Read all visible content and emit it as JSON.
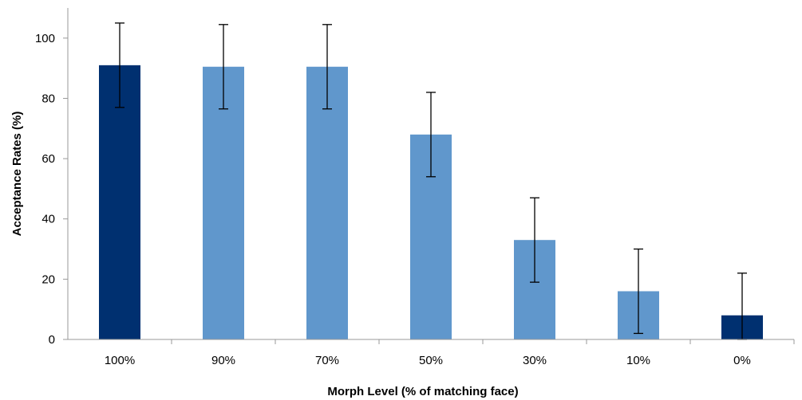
{
  "chart_data": {
    "type": "bar",
    "title": "",
    "xlabel": "Morph Level (% of matching face)",
    "ylabel": "Acceptance Rates (%)",
    "ylim": [
      0,
      110
    ],
    "yticks": [
      0,
      20,
      40,
      60,
      80,
      100
    ],
    "grid": false,
    "categories": [
      "100%",
      "90%",
      "70%",
      "50%",
      "30%",
      "10%",
      "0%"
    ],
    "values": [
      91,
      90.5,
      90.5,
      68,
      33,
      16,
      8
    ],
    "error": [
      14,
      14,
      14,
      14,
      14,
      14,
      14
    ],
    "colors": [
      "#003070",
      "#6097cc",
      "#6097cc",
      "#6097cc",
      "#6097cc",
      "#6097cc",
      "#003070"
    ]
  }
}
